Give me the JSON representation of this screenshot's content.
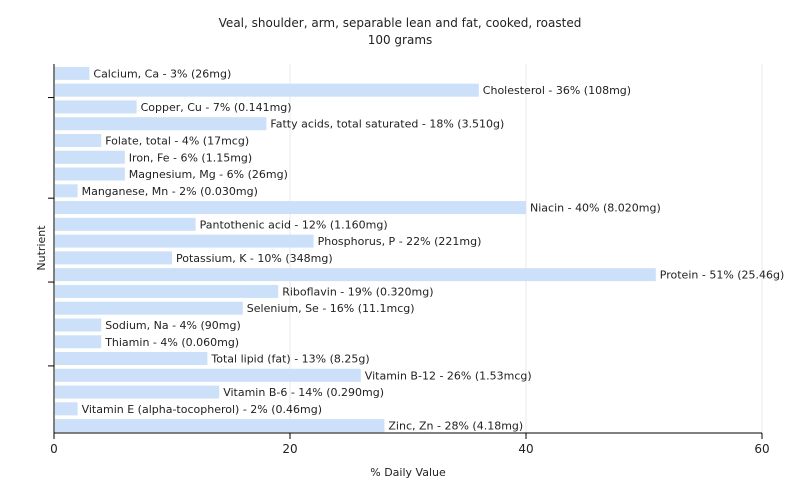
{
  "chart_data": {
    "type": "bar",
    "orientation": "horizontal",
    "title": "Veal, shoulder, arm, separable lean and fat, cooked, roasted",
    "subtitle": "100 grams",
    "xlabel": "% Daily Value",
    "ylabel": "Nutrient",
    "xlim": [
      0,
      60
    ],
    "xticks": [
      0,
      20,
      40,
      60
    ],
    "grid": true,
    "bar_color": "#cce0f9",
    "categories": [
      "Calcium, Ca",
      "Cholesterol",
      "Copper, Cu",
      "Fatty acids, total saturated",
      "Folate, total",
      "Iron, Fe",
      "Magnesium, Mg",
      "Manganese, Mn",
      "Niacin",
      "Pantothenic acid",
      "Phosphorus, P",
      "Potassium, K",
      "Protein",
      "Riboflavin",
      "Selenium, Se",
      "Sodium, Na",
      "Thiamin",
      "Total lipid (fat)",
      "Vitamin B-12",
      "Vitamin B-6",
      "Vitamin E (alpha-tocopherol)",
      "Zinc, Zn"
    ],
    "values": [
      3,
      36,
      7,
      18,
      4,
      6,
      6,
      2,
      40,
      12,
      22,
      10,
      51,
      19,
      16,
      4,
      4,
      13,
      26,
      14,
      2,
      28
    ],
    "labels": [
      "Calcium, Ca - 3% (26mg)",
      "Cholesterol - 36% (108mg)",
      "Copper, Cu - 7% (0.141mg)",
      "Fatty acids, total saturated - 18% (3.510g)",
      "Folate, total - 4% (17mcg)",
      "Iron, Fe - 6% (1.15mg)",
      "Magnesium, Mg - 6% (26mg)",
      "Manganese, Mn - 2% (0.030mg)",
      "Niacin - 40% (8.020mg)",
      "Pantothenic acid - 12% (1.160mg)",
      "Phosphorus, P - 22% (221mg)",
      "Potassium, K - 10% (348mg)",
      "Protein - 51% (25.46g)",
      "Riboflavin - 19% (0.320mg)",
      "Selenium, Se - 16% (11.1mcg)",
      "Sodium, Na - 4% (90mg)",
      "Thiamin - 4% (0.060mg)",
      "Total lipid (fat) - 13% (8.25g)",
      "Vitamin B-12 - 26% (1.53mcg)",
      "Vitamin B-6 - 14% (0.290mg)",
      "Vitamin E (alpha-tocopherol) - 2% (0.46mg)",
      "Zinc, Zn - 28% (4.18mg)"
    ]
  }
}
